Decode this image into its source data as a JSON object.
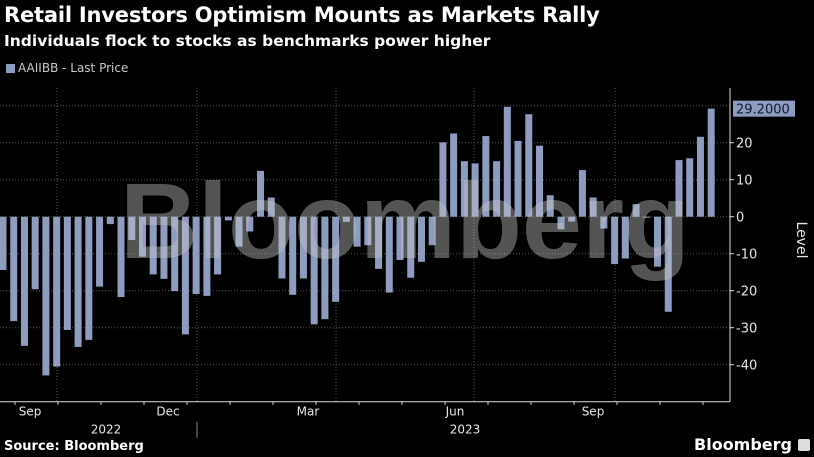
{
  "header": {
    "title": "Retail Investors Optimism Mounts as Markets Rally",
    "subtitle": "Individuals flock to stocks as benchmarks power higher"
  },
  "footer": {
    "source": "Source: Bloomberg",
    "logo": "Bloomberg",
    "watermark": "Bloomberg"
  },
  "chart_data": {
    "type": "bar",
    "title": "Retail Investors Optimism Mounts as Markets Rally",
    "subtitle": "Individuals flock to stocks as benchmarks power higher",
    "legend": [
      {
        "name": "AAIIBB - Last Price",
        "color": "#8e9cc0"
      }
    ],
    "legend_position": "top-left",
    "ylabel": "Level",
    "y_axis_side": "right",
    "ylim": [
      -50,
      32
    ],
    "yticks": [
      20,
      10,
      0,
      -10,
      -20,
      -30,
      -40
    ],
    "grid": true,
    "last_value_label": "29.2000",
    "x_month_labels": [
      "Sep",
      "Dec",
      "Mar",
      "Jun",
      "Sep"
    ],
    "x_year_labels": [
      "2022",
      "2023"
    ],
    "frequency": "weekly",
    "series": [
      {
        "name": "AAIIBB - Last Price",
        "color": "#8e9cc0",
        "values": [
          -14.4,
          -28.2,
          -34.9,
          -19.6,
          -42.9,
          -40.5,
          -30.6,
          -35.2,
          -33.3,
          -18.9,
          -2.0,
          -21.7,
          -6.3,
          -10.8,
          -15.6,
          -16.8,
          -20.1,
          -31.8,
          -20.9,
          -21.4,
          -15.6,
          -1.0,
          -8.1,
          -4.0,
          12.4,
          5.2,
          -16.7,
          -21.1,
          -16.7,
          -29.1,
          -27.7,
          -23.0,
          -1.4,
          -8.1,
          -7.7,
          -14.1,
          -20.5,
          -11.7,
          -16.5,
          -12.2,
          -7.7,
          20.1,
          22.5,
          15.0,
          14.4,
          21.8,
          15.0,
          29.7,
          20.5,
          27.7,
          19.2,
          5.8,
          -3.4,
          -1.3,
          12.6,
          5.2,
          -3.2,
          -12.8,
          -11.3,
          3.4,
          0.0,
          -13.5,
          -25.7,
          15.3,
          15.8,
          21.6,
          29.2
        ]
      }
    ]
  }
}
